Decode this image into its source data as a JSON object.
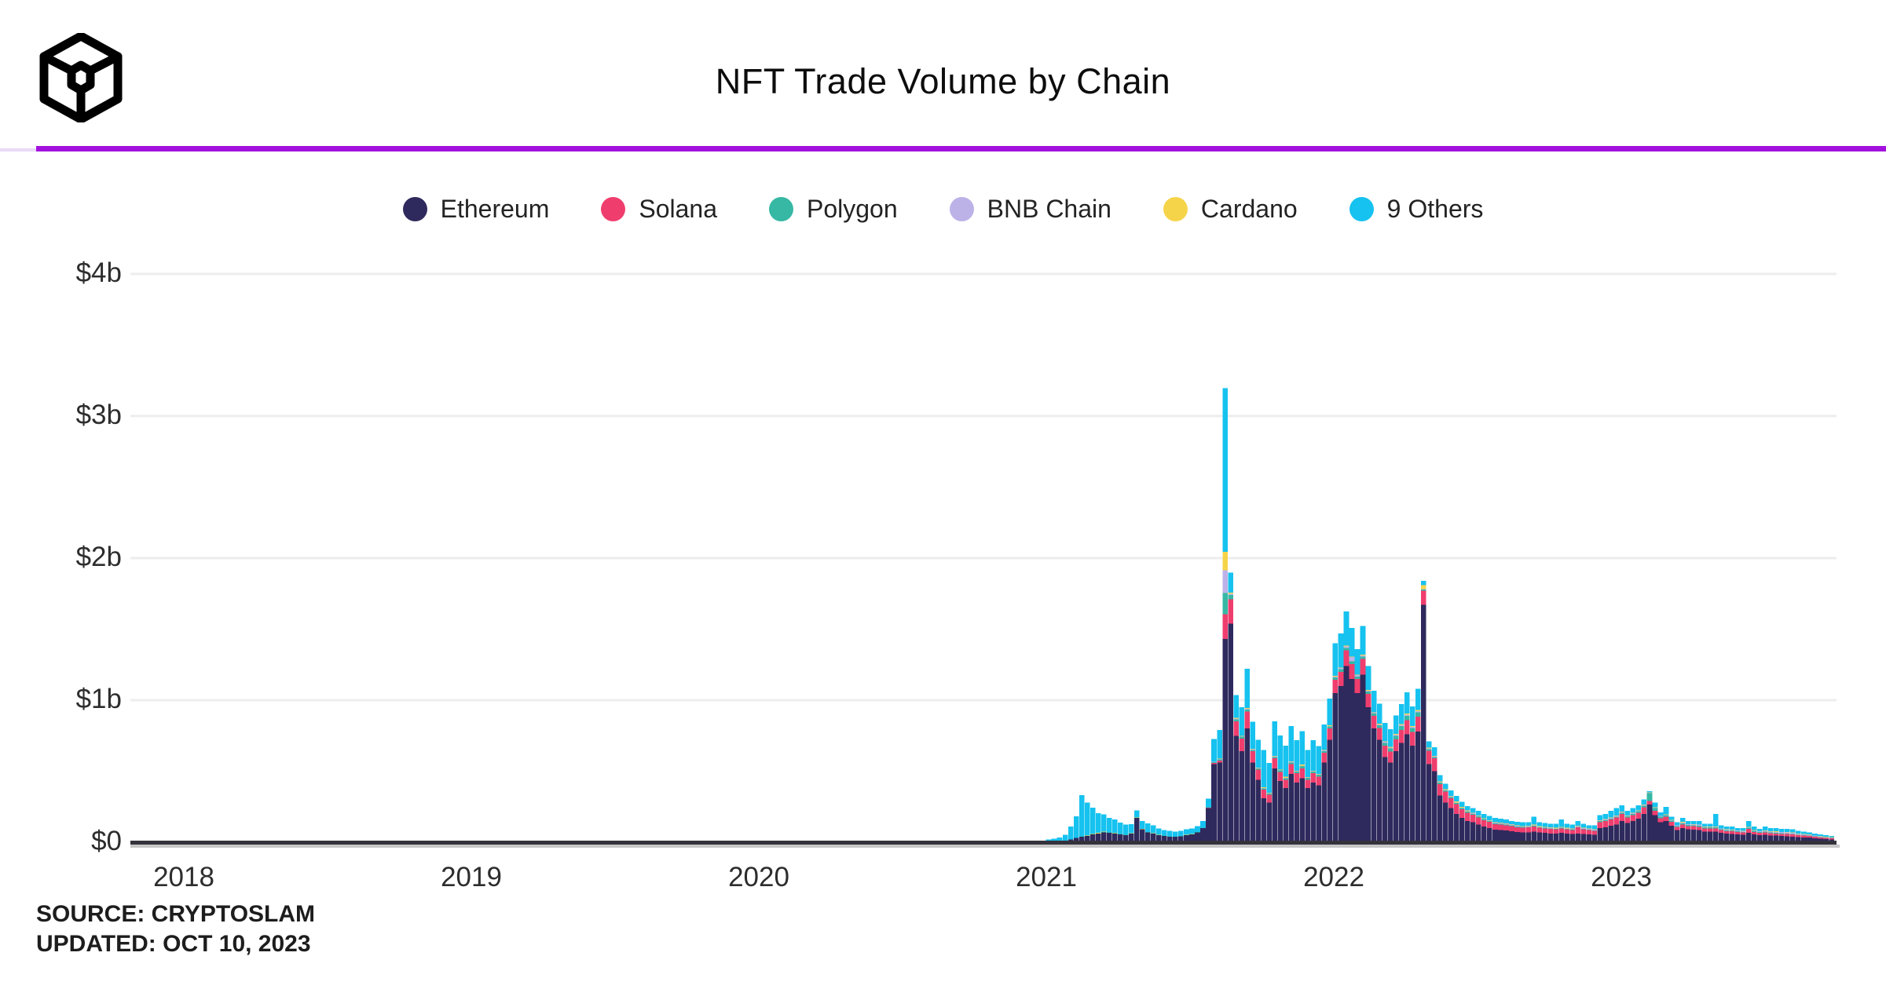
{
  "header": {
    "title": "NFT Trade Volume by Chain",
    "logo_icon": "cryptoslam-cube-logo"
  },
  "brand": {
    "divider_color": "#a211dd",
    "divider_stub_color": "#e9d9f6",
    "logo_color": "#000000"
  },
  "legend": {
    "items": [
      {
        "label": "Ethereum",
        "color": "#2f2a5d"
      },
      {
        "label": "Solana",
        "color": "#ef3e6e"
      },
      {
        "label": "Polygon",
        "color": "#36b8a4"
      },
      {
        "label": "BNB Chain",
        "color": "#bcb2e8"
      },
      {
        "label": "Cardano",
        "color": "#f6d44a"
      },
      {
        "label": "9 Others",
        "color": "#16c2ef"
      }
    ]
  },
  "footer": {
    "source": "SOURCE: CRYPTOSLAM",
    "updated": "UPDATED: OCT 10, 2023"
  },
  "chart_data": {
    "type": "bar",
    "stacked": true,
    "title": "NFT Trade Volume by Chain",
    "unit": "USD millions per week",
    "ylim": [
      0,
      4000
    ],
    "y_ticks": [
      {
        "label": "$0",
        "value": 0
      },
      {
        "label": "$1b",
        "value": 1000
      },
      {
        "label": "$2b",
        "value": 2000
      },
      {
        "label": "$3b",
        "value": 3000
      },
      {
        "label": "$4b",
        "value": 4000
      }
    ],
    "x_ticks": [
      {
        "label": "2018",
        "year": 2018
      },
      {
        "label": "2019",
        "year": 2019
      },
      {
        "label": "2020",
        "year": 2020
      },
      {
        "label": "2021",
        "year": 2021
      },
      {
        "label": "2022",
        "year": 2022
      },
      {
        "label": "2023",
        "year": 2023
      }
    ],
    "grid": true,
    "legend_position": "top",
    "series_names": [
      "Ethereum",
      "Solana",
      "Polygon",
      "BNB Chain",
      "Cardano",
      "9 Others"
    ],
    "series_colors": [
      "#2f2a5d",
      "#ef3e6e",
      "#36b8a4",
      "#bcb2e8",
      "#f6d44a",
      "#16c2ef"
    ],
    "pre_2021_note": "Weekly volume from Jan 2018 through Dec 2020 is ~0 (flat axis line)",
    "weeks_start": "2021-01-04",
    "weeks_values_order": [
      "Ethereum",
      "Solana",
      "Polygon",
      "BNB Chain",
      "Cardano",
      "9 Others"
    ],
    "weeks": [
      [
        3,
        0,
        0,
        0,
        0,
        15
      ],
      [
        5,
        0,
        0,
        0,
        0,
        20
      ],
      [
        8,
        0,
        0,
        0,
        0,
        25
      ],
      [
        12,
        0,
        0,
        0,
        0,
        40
      ],
      [
        20,
        0,
        0,
        0,
        0,
        90
      ],
      [
        30,
        0,
        1,
        0,
        0,
        150
      ],
      [
        40,
        0,
        1,
        0,
        0,
        290
      ],
      [
        45,
        0,
        2,
        0,
        3,
        230
      ],
      [
        55,
        0,
        2,
        0,
        5,
        180
      ],
      [
        60,
        0,
        2,
        0,
        3,
        140
      ],
      [
        70,
        0,
        3,
        0,
        2,
        120
      ],
      [
        65,
        0,
        3,
        0,
        2,
        100
      ],
      [
        60,
        0,
        3,
        0,
        2,
        95
      ],
      [
        55,
        0,
        2,
        0,
        1,
        80
      ],
      [
        50,
        0,
        2,
        0,
        1,
        70
      ],
      [
        60,
        0,
        2,
        0,
        1,
        65
      ],
      [
        170,
        0,
        2,
        0,
        1,
        50
      ],
      [
        90,
        0,
        2,
        0,
        1,
        55
      ],
      [
        70,
        0,
        2,
        0,
        1,
        60
      ],
      [
        60,
        0,
        2,
        0,
        1,
        55
      ],
      [
        50,
        0,
        1,
        0,
        1,
        45
      ],
      [
        45,
        0,
        1,
        0,
        1,
        40
      ],
      [
        40,
        0,
        1,
        0,
        1,
        38
      ],
      [
        38,
        0,
        1,
        0,
        1,
        35
      ],
      [
        42,
        0,
        1,
        0,
        1,
        35
      ],
      [
        50,
        0,
        1,
        0,
        1,
        38
      ],
      [
        55,
        0,
        1,
        0,
        1,
        40
      ],
      [
        70,
        0,
        2,
        0,
        1,
        40
      ],
      [
        100,
        0,
        2,
        0,
        1,
        45
      ],
      [
        240,
        3,
        3,
        0,
        1,
        60
      ],
      [
        550,
        8,
        5,
        2,
        2,
        160
      ],
      [
        560,
        15,
        8,
        3,
        3,
        200
      ],
      [
        1430,
        175,
        150,
        160,
        130,
        1150
      ],
      [
        1540,
        170,
        30,
        10,
        8,
        140
      ],
      [
        750,
        100,
        15,
        5,
        5,
        160
      ],
      [
        640,
        90,
        12,
        4,
        4,
        200
      ],
      [
        800,
        120,
        15,
        5,
        5,
        275
      ],
      [
        560,
        80,
        10,
        4,
        3,
        190
      ],
      [
        440,
        70,
        10,
        3,
        3,
        195
      ],
      [
        310,
        60,
        8,
        3,
        5,
        264
      ],
      [
        280,
        55,
        8,
        3,
        3,
        210
      ],
      [
        520,
        70,
        10,
        4,
        3,
        245
      ],
      [
        430,
        65,
        10,
        4,
        3,
        240
      ],
      [
        380,
        60,
        10,
        4,
        6,
        220
      ],
      [
        480,
        70,
        12,
        4,
        3,
        250
      ],
      [
        420,
        65,
        12,
        4,
        3,
        215
      ],
      [
        450,
        70,
        15,
        5,
        6,
        235
      ],
      [
        380,
        60,
        12,
        4,
        3,
        190
      ],
      [
        420,
        65,
        12,
        4,
        3,
        215
      ],
      [
        400,
        62,
        12,
        4,
        3,
        195
      ],
      [
        560,
        70,
        12,
        4,
        3,
        180
      ],
      [
        720,
        80,
        14,
        5,
        3,
        190
      ],
      [
        1050,
        95,
        16,
        6,
        4,
        230
      ],
      [
        1100,
        100,
        18,
        8,
        4,
        240
      ],
      [
        1240,
        110,
        18,
        10,
        5,
        240
      ],
      [
        1150,
        105,
        18,
        30,
        5,
        200
      ],
      [
        1050,
        100,
        16,
        10,
        4,
        180
      ],
      [
        1180,
        110,
        18,
        8,
        5,
        200
      ],
      [
        950,
        95,
        16,
        6,
        4,
        170
      ],
      [
        800,
        90,
        15,
        6,
        4,
        150
      ],
      [
        720,
        85,
        18,
        6,
        5,
        140
      ],
      [
        600,
        80,
        20,
        6,
        5,
        130
      ],
      [
        560,
        78,
        22,
        6,
        5,
        125
      ],
      [
        640,
        85,
        25,
        7,
        6,
        130
      ],
      [
        700,
        90,
        28,
        8,
        6,
        140
      ],
      [
        760,
        100,
        30,
        8,
        7,
        150
      ],
      [
        680,
        95,
        28,
        8,
        6,
        140
      ],
      [
        780,
        105,
        30,
        8,
        7,
        150
      ],
      [
        1670,
        100,
        8,
        3,
        28,
        30
      ],
      [
        550,
        95,
        10,
        4,
        6,
        45
      ],
      [
        500,
        90,
        10,
        4,
        5,
        60
      ],
      [
        330,
        80,
        9,
        4,
        4,
        45
      ],
      [
        280,
        75,
        9,
        4,
        4,
        40
      ],
      [
        240,
        70,
        8,
        4,
        4,
        38
      ],
      [
        200,
        68,
        8,
        4,
        6,
        39
      ],
      [
        170,
        62,
        7,
        4,
        5,
        37
      ],
      [
        150,
        58,
        7,
        4,
        4,
        32
      ],
      [
        140,
        54,
        6,
        4,
        4,
        32
      ],
      [
        125,
        50,
        6,
        4,
        3,
        32
      ],
      [
        110,
        46,
        6,
        4,
        3,
        31
      ],
      [
        100,
        44,
        5,
        4,
        3,
        29
      ],
      [
        88,
        40,
        5,
        4,
        3,
        30
      ],
      [
        85,
        40,
        5,
        4,
        3,
        28
      ],
      [
        82,
        38,
        5,
        4,
        3,
        28
      ],
      [
        78,
        36,
        5,
        4,
        3,
        24
      ],
      [
        72,
        34,
        5,
        4,
        3,
        27
      ],
      [
        70,
        33,
        4,
        4,
        3,
        26
      ],
      [
        70,
        34,
        4,
        4,
        3,
        25
      ],
      [
        75,
        36,
        5,
        4,
        3,
        57
      ],
      [
        68,
        33,
        4,
        4,
        3,
        28
      ],
      [
        65,
        32,
        4,
        4,
        3,
        27
      ],
      [
        62,
        31,
        4,
        4,
        3,
        26
      ],
      [
        60,
        30,
        4,
        4,
        3,
        29
      ],
      [
        65,
        32,
        4,
        4,
        3,
        52
      ],
      [
        60,
        30,
        4,
        4,
        3,
        29
      ],
      [
        58,
        28,
        4,
        4,
        3,
        28
      ],
      [
        62,
        42,
        4,
        5,
        3,
        34
      ],
      [
        58,
        33,
        4,
        4,
        3,
        28
      ],
      [
        55,
        30,
        4,
        4,
        3,
        24
      ],
      [
        52,
        28,
        4,
        4,
        3,
        29
      ],
      [
        100,
        42,
        6,
        5,
        3,
        34
      ],
      [
        105,
        44,
        6,
        5,
        3,
        37
      ],
      [
        115,
        45,
        7,
        5,
        3,
        45
      ],
      [
        125,
        48,
        7,
        5,
        3,
        52
      ],
      [
        150,
        50,
        8,
        5,
        3,
        44
      ],
      [
        135,
        38,
        8,
        5,
        3,
        31
      ],
      [
        150,
        40,
        9,
        5,
        3,
        33
      ],
      [
        165,
        42,
        10,
        5,
        3,
        35
      ],
      [
        200,
        45,
        12,
        5,
        3,
        35
      ],
      [
        265,
        25,
        55,
        4,
        2,
        9
      ],
      [
        190,
        30,
        20,
        4,
        2,
        34
      ],
      [
        140,
        28,
        12,
        4,
        2,
        24
      ],
      [
        150,
        30,
        10,
        4,
        2,
        54
      ],
      [
        115,
        28,
        8,
        4,
        2,
        23
      ],
      [
        85,
        22,
        7,
        4,
        2,
        20
      ],
      [
        100,
        25,
        8,
        4,
        6,
        27
      ],
      [
        90,
        24,
        8,
        4,
        2,
        22
      ],
      [
        88,
        24,
        8,
        5,
        2,
        23
      ],
      [
        85,
        24,
        8,
        6,
        2,
        25
      ],
      [
        75,
        22,
        7,
        5,
        2,
        19
      ],
      [
        75,
        22,
        7,
        5,
        2,
        19
      ],
      [
        75,
        22,
        7,
        5,
        2,
        89
      ],
      [
        65,
        20,
        6,
        5,
        2,
        22
      ],
      [
        60,
        18,
        6,
        5,
        2,
        19
      ],
      [
        58,
        18,
        6,
        5,
        2,
        21
      ],
      [
        55,
        17,
        5,
        5,
        2,
        16
      ],
      [
        52,
        16,
        5,
        5,
        2,
        20
      ],
      [
        65,
        30,
        6,
        5,
        2,
        42
      ],
      [
        55,
        18,
        6,
        5,
        2,
        24
      ],
      [
        50,
        16,
        5,
        5,
        2,
        17
      ],
      [
        52,
        18,
        5,
        6,
        2,
        27
      ],
      [
        48,
        16,
        5,
        6,
        2,
        23
      ],
      [
        46,
        15,
        5,
        7,
        3,
        24
      ],
      [
        44,
        15,
        5,
        7,
        2,
        22
      ],
      [
        42,
        15,
        5,
        7,
        2,
        24
      ],
      [
        40,
        14,
        5,
        7,
        2,
        22
      ],
      [
        36,
        13,
        4,
        6,
        2,
        19
      ],
      [
        34,
        12,
        4,
        6,
        2,
        17
      ],
      [
        32,
        11,
        4,
        5,
        2,
        16
      ],
      [
        28,
        10,
        3,
        5,
        2,
        12
      ],
      [
        25,
        9,
        3,
        4,
        2,
        12
      ],
      [
        22,
        8,
        3,
        4,
        2,
        11
      ],
      [
        20,
        7,
        3,
        4,
        2,
        9
      ]
    ]
  }
}
